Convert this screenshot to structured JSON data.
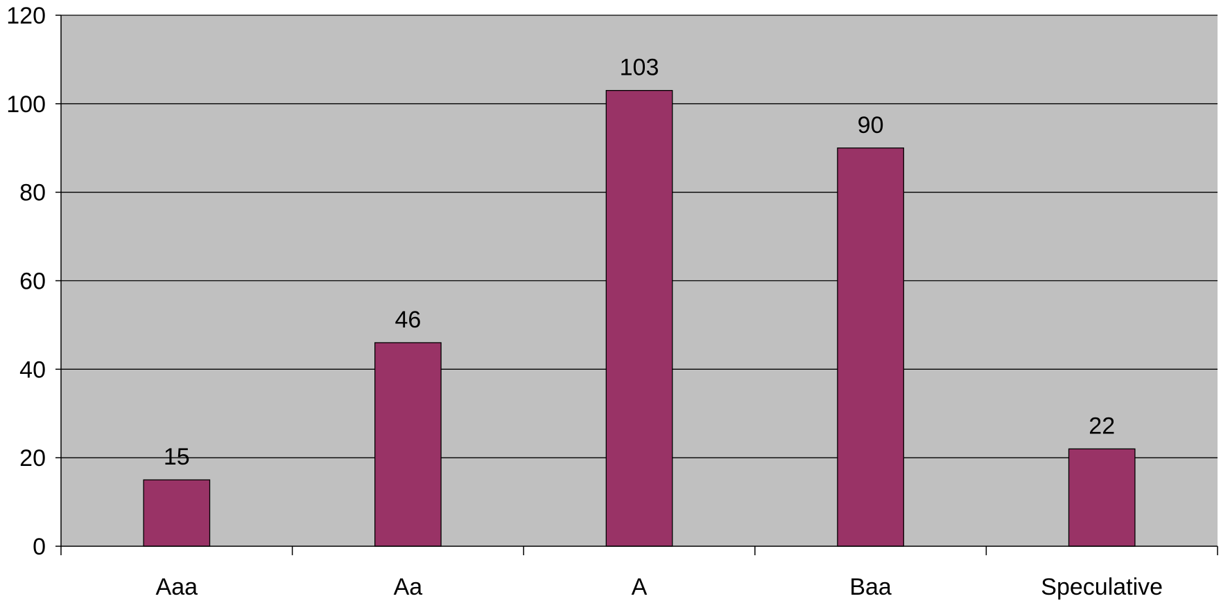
{
  "chart_data": {
    "type": "bar",
    "categories": [
      "Aaa",
      "Aa",
      "A",
      "Baa",
      "Speculative"
    ],
    "values": [
      15,
      46,
      103,
      90,
      22
    ],
    "data_labels": [
      "15",
      "46",
      "103",
      "90",
      "22"
    ],
    "ylim": [
      0,
      120
    ],
    "yticks": [
      0,
      20,
      40,
      60,
      80,
      100,
      120
    ],
    "ytick_labels": [
      "0",
      "20",
      "40",
      "60",
      "80",
      "100",
      "120"
    ],
    "grid": true,
    "legend": "none",
    "colors": {
      "bar": "#993366",
      "plot_background": "#C0C0C0",
      "gridline": "#000000",
      "axis": "#000000"
    }
  }
}
